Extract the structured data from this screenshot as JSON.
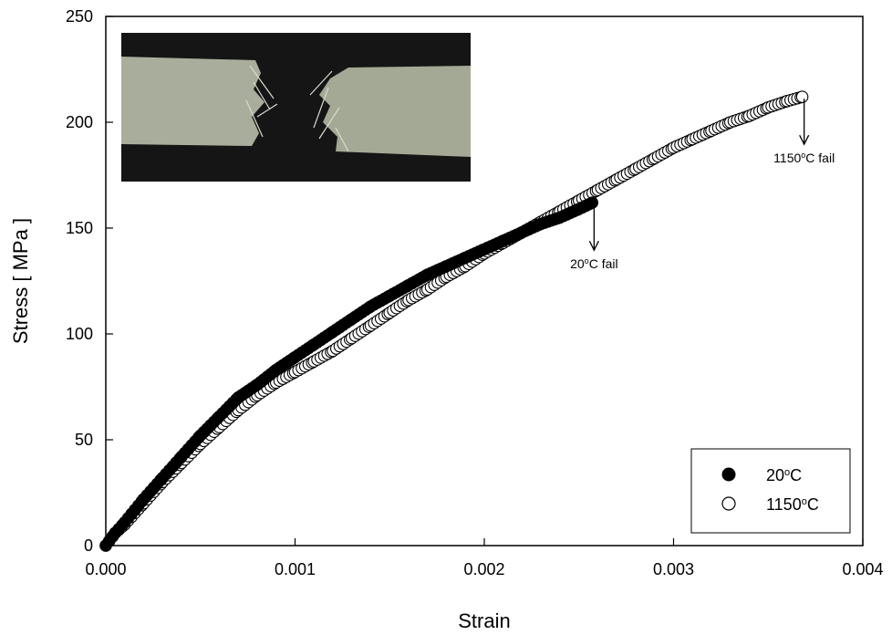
{
  "chart_data": {
    "type": "scatter",
    "xlabel": "Strain",
    "ylabel": "Stress  [ MPa ]",
    "xlim": [
      0,
      0.004
    ],
    "ylim": [
      0,
      250
    ],
    "x_ticks": [
      "0.000",
      "0.001",
      "0.002",
      "0.003",
      "0.004"
    ],
    "y_ticks": [
      "0",
      "50",
      "100",
      "150",
      "200",
      "250"
    ],
    "legend_position": "bottom-right",
    "series": [
      {
        "name": "20°C",
        "marker": "filled-circle",
        "color": "#000000",
        "x": [
          0,
          5e-05,
          0.0001,
          0.0002,
          0.0003,
          0.0004,
          0.0005,
          0.0006,
          0.0007,
          0.0008,
          0.0009,
          0.001,
          0.0011,
          0.0012,
          0.0013,
          0.0014,
          0.0015,
          0.0016,
          0.0017,
          0.0018,
          0.0019,
          0.002,
          0.0021,
          0.0022,
          0.0023,
          0.0024,
          0.0025,
          0.00257
        ],
        "y": [
          0,
          6,
          11,
          22,
          32,
          42,
          52,
          61,
          70,
          76,
          83,
          89,
          95,
          101,
          107,
          113,
          118,
          123,
          128,
          132,
          136,
          140,
          144,
          148,
          152,
          155,
          159,
          162
        ]
      },
      {
        "name": "1150°C",
        "marker": "open-circle",
        "color": "#000000",
        "x": [
          0,
          5e-05,
          0.0001,
          0.0002,
          0.0003,
          0.0004,
          0.0005,
          0.0006,
          0.0007,
          0.0008,
          0.0009,
          0.001,
          0.0011,
          0.0012,
          0.0013,
          0.0014,
          0.0015,
          0.0016,
          0.0017,
          0.0018,
          0.0019,
          0.002,
          0.0021,
          0.0022,
          0.0023,
          0.0024,
          0.0025,
          0.0026,
          0.0027,
          0.0028,
          0.0029,
          0.003,
          0.0031,
          0.0032,
          0.0033,
          0.0034,
          0.0035,
          0.0036,
          0.00368
        ],
        "y": [
          0,
          6,
          10,
          20,
          30,
          39,
          48,
          56,
          64,
          71,
          77,
          82,
          87,
          92,
          98,
          104,
          110,
          116,
          121,
          127,
          132,
          138,
          143,
          148,
          153,
          158,
          163,
          168,
          173,
          178,
          183,
          188,
          192,
          196,
          200,
          203,
          207,
          210,
          212
        ]
      }
    ],
    "annotations": [
      {
        "base": "20",
        "sup": "o",
        "rest": "C fail",
        "x": 0.00258,
        "y": 162,
        "arrow_length": 50
      },
      {
        "base": "1150",
        "sup": "o",
        "rest": "C fail",
        "x": 0.00369,
        "y": 212,
        "arrow_length": 50
      }
    ],
    "legend": [
      {
        "base": "20",
        "sup": "o",
        "rest": "C",
        "marker": "filled-circle"
      },
      {
        "base": "1150",
        "sup": "o",
        "rest": "C",
        "marker": "open-circle"
      }
    ],
    "inset": {
      "type": "photo",
      "subject": "fractured specimen"
    }
  }
}
